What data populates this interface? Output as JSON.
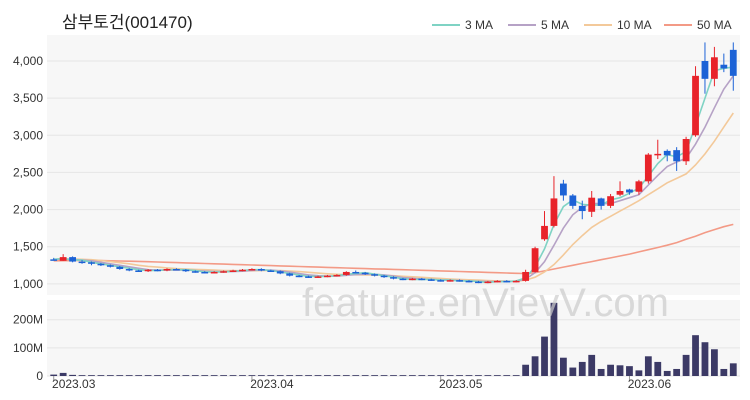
{
  "chart_data": [
    {
      "type": "candlestick",
      "title": "삼부토건(001470)",
      "legend": [
        "3 MA",
        "5 MA",
        "10 MA",
        "50 MA"
      ],
      "legend_colors": [
        "#7fd3c4",
        "#b6a2c6",
        "#f3c99a",
        "#f39a86"
      ],
      "up_color": "#e8232a",
      "down_color": "#1c62d6",
      "grid": true,
      "legend_position": "top-right",
      "yticks": [
        "1,000",
        "1,500",
        "2,000",
        "2,500",
        "3,000",
        "3,500",
        "4,000"
      ],
      "ylim": [
        850,
        4350
      ],
      "xticks": [
        "2023.03",
        "2023.04",
        "2023.05",
        "2023.06"
      ],
      "x_dates_start": "2023-03-02",
      "candles": [
        [
          1330,
          1350,
          1320,
          1310
        ],
        [
          1310,
          1400,
          1310,
          1360
        ],
        [
          1360,
          1370,
          1290,
          1300
        ],
        [
          1300,
          1320,
          1270,
          1290
        ],
        [
          1290,
          1300,
          1250,
          1270
        ],
        [
          1270,
          1280,
          1240,
          1250
        ],
        [
          1250,
          1260,
          1220,
          1230
        ],
        [
          1230,
          1240,
          1190,
          1200
        ],
        [
          1200,
          1210,
          1170,
          1180
        ],
        [
          1180,
          1190,
          1160,
          1170
        ],
        [
          1170,
          1200,
          1160,
          1190
        ],
        [
          1190,
          1200,
          1170,
          1180
        ],
        [
          1180,
          1210,
          1170,
          1200
        ],
        [
          1200,
          1210,
          1180,
          1190
        ],
        [
          1190,
          1200,
          1160,
          1170
        ],
        [
          1170,
          1180,
          1150,
          1160
        ],
        [
          1160,
          1170,
          1140,
          1150
        ],
        [
          1150,
          1170,
          1140,
          1160
        ],
        [
          1160,
          1180,
          1150,
          1170
        ],
        [
          1170,
          1190,
          1160,
          1180
        ],
        [
          1180,
          1200,
          1170,
          1190
        ],
        [
          1190,
          1210,
          1180,
          1200
        ],
        [
          1200,
          1210,
          1170,
          1180
        ],
        [
          1180,
          1190,
          1160,
          1170
        ],
        [
          1170,
          1180,
          1130,
          1140
        ],
        [
          1140,
          1150,
          1100,
          1110
        ],
        [
          1110,
          1120,
          1090,
          1100
        ],
        [
          1100,
          1110,
          1080,
          1090
        ],
        [
          1090,
          1110,
          1080,
          1100
        ],
        [
          1100,
          1120,
          1090,
          1110
        ],
        [
          1110,
          1130,
          1100,
          1120
        ],
        [
          1120,
          1170,
          1110,
          1160
        ],
        [
          1160,
          1180,
          1140,
          1150
        ],
        [
          1150,
          1160,
          1120,
          1130
        ],
        [
          1130,
          1140,
          1100,
          1110
        ],
        [
          1110,
          1120,
          1080,
          1090
        ],
        [
          1090,
          1100,
          1060,
          1070
        ],
        [
          1070,
          1080,
          1050,
          1060
        ],
        [
          1060,
          1080,
          1050,
          1070
        ],
        [
          1070,
          1080,
          1050,
          1060
        ],
        [
          1060,
          1070,
          1040,
          1050
        ],
        [
          1050,
          1060,
          1030,
          1040
        ],
        [
          1040,
          1060,
          1030,
          1050
        ],
        [
          1050,
          1060,
          1030,
          1040
        ],
        [
          1040,
          1050,
          1020,
          1030
        ],
        [
          1030,
          1040,
          1010,
          1020
        ],
        [
          1020,
          1040,
          1010,
          1030
        ],
        [
          1030,
          1050,
          1020,
          1040
        ],
        [
          1040,
          1050,
          1020,
          1030
        ],
        [
          1030,
          1050,
          1020,
          1040
        ],
        [
          1040,
          1190,
          1030,
          1160
        ],
        [
          1160,
          1500,
          1150,
          1480
        ],
        [
          1600,
          1980,
          1580,
          1780
        ],
        [
          1780,
          2450,
          1760,
          2150
        ],
        [
          2350,
          2400,
          2120,
          2190
        ],
        [
          2190,
          2210,
          2010,
          2050
        ],
        [
          2050,
          2120,
          1870,
          1980
        ],
        [
          1970,
          2250,
          1900,
          2160
        ],
        [
          2150,
          2160,
          2000,
          2050
        ],
        [
          2050,
          2210,
          2020,
          2180
        ],
        [
          2200,
          2380,
          2180,
          2250
        ],
        [
          2270,
          2280,
          2200,
          2230
        ],
        [
          2240,
          2400,
          2200,
          2380
        ],
        [
          2380,
          2760,
          2350,
          2740
        ],
        [
          2740,
          2940,
          2680,
          2750
        ],
        [
          2790,
          2810,
          2650,
          2730
        ],
        [
          2800,
          2840,
          2520,
          2650
        ],
        [
          2650,
          2980,
          2600,
          2950
        ],
        [
          3000,
          3930,
          2980,
          3800
        ],
        [
          4000,
          4250,
          3560,
          3760
        ],
        [
          3760,
          4190,
          3660,
          4050
        ],
        [
          3950,
          4100,
          3850,
          3900
        ],
        [
          4150,
          4250,
          3600,
          3800
        ]
      ],
      "volume_ticks": [
        "0",
        "100M",
        "200M"
      ],
      "volume_max": 270,
      "volumes": [
        5,
        11,
        4,
        3,
        3,
        3,
        3,
        3,
        3,
        3,
        3,
        3,
        3,
        3,
        3,
        3,
        3,
        3,
        3,
        3,
        3,
        3,
        3,
        3,
        3,
        3,
        3,
        3,
        3,
        3,
        3,
        3,
        3,
        3,
        3,
        3,
        3,
        3,
        3,
        3,
        3,
        3,
        3,
        3,
        3,
        3,
        3,
        3,
        3,
        3,
        40,
        70,
        140,
        260,
        65,
        30,
        50,
        75,
        25,
        40,
        38,
        35,
        20,
        70,
        50,
        18,
        25,
        75,
        145,
        120,
        95,
        25,
        45
      ],
      "ma3": [
        1330,
        1340,
        1320,
        1320,
        1290,
        1270,
        1250,
        1230,
        1210,
        1190,
        1180,
        1180,
        1190,
        1190,
        1190,
        1180,
        1160,
        1160,
        1160,
        1170,
        1180,
        1190,
        1190,
        1180,
        1160,
        1140,
        1120,
        1100,
        1100,
        1100,
        1110,
        1130,
        1140,
        1150,
        1130,
        1110,
        1090,
        1070,
        1060,
        1060,
        1060,
        1050,
        1050,
        1040,
        1040,
        1030,
        1020,
        1030,
        1030,
        1040,
        1080,
        1230,
        1470,
        1800,
        2040,
        2130,
        2070,
        2060,
        2060,
        2130,
        2160,
        2220,
        2290,
        2450,
        2620,
        2740,
        2710,
        2780,
        3130,
        3500,
        3870,
        3900,
        3920
      ],
      "ma5": [
        1330,
        1335,
        1330,
        1320,
        1310,
        1290,
        1270,
        1250,
        1230,
        1210,
        1190,
        1185,
        1185,
        1185,
        1185,
        1180,
        1170,
        1165,
        1165,
        1165,
        1170,
        1180,
        1185,
        1185,
        1175,
        1160,
        1140,
        1120,
        1110,
        1105,
        1105,
        1115,
        1125,
        1130,
        1130,
        1120,
        1105,
        1085,
        1075,
        1065,
        1060,
        1055,
        1050,
        1045,
        1040,
        1035,
        1030,
        1030,
        1030,
        1035,
        1065,
        1150,
        1300,
        1520,
        1750,
        1930,
        2030,
        2080,
        2080,
        2080,
        2120,
        2160,
        2200,
        2330,
        2460,
        2580,
        2640,
        2690,
        2880,
        3110,
        3370,
        3620,
        3800
      ],
      "ma10": [
        1330,
        1335,
        1335,
        1330,
        1325,
        1315,
        1300,
        1285,
        1270,
        1250,
        1235,
        1225,
        1215,
        1205,
        1200,
        1195,
        1190,
        1185,
        1180,
        1178,
        1176,
        1176,
        1178,
        1180,
        1178,
        1172,
        1165,
        1155,
        1145,
        1135,
        1128,
        1125,
        1122,
        1120,
        1118,
        1115,
        1110,
        1102,
        1095,
        1088,
        1080,
        1073,
        1066,
        1060,
        1055,
        1050,
        1045,
        1040,
        1037,
        1035,
        1050,
        1090,
        1160,
        1260,
        1390,
        1530,
        1650,
        1760,
        1840,
        1910,
        1980,
        2050,
        2120,
        2200,
        2280,
        2360,
        2420,
        2480,
        2600,
        2750,
        2920,
        3110,
        3300
      ],
      "ma50": [
        1310,
        1312,
        1313,
        1314,
        1314,
        1313,
        1311,
        1308,
        1305,
        1302,
        1298,
        1294,
        1290,
        1286,
        1282,
        1278,
        1274,
        1270,
        1266,
        1262,
        1258,
        1254,
        1250,
        1246,
        1242,
        1238,
        1234,
        1230,
        1226,
        1222,
        1218,
        1214,
        1210,
        1206,
        1202,
        1198,
        1194,
        1190,
        1186,
        1182,
        1178,
        1174,
        1170,
        1166,
        1162,
        1158,
        1154,
        1150,
        1146,
        1142,
        1140,
        1150,
        1175,
        1200,
        1225,
        1250,
        1275,
        1300,
        1325,
        1350,
        1375,
        1400,
        1430,
        1460,
        1490,
        1520,
        1555,
        1600,
        1640,
        1690,
        1730,
        1770,
        1800
      ]
    }
  ],
  "watermark": "feature.enVievV.com"
}
